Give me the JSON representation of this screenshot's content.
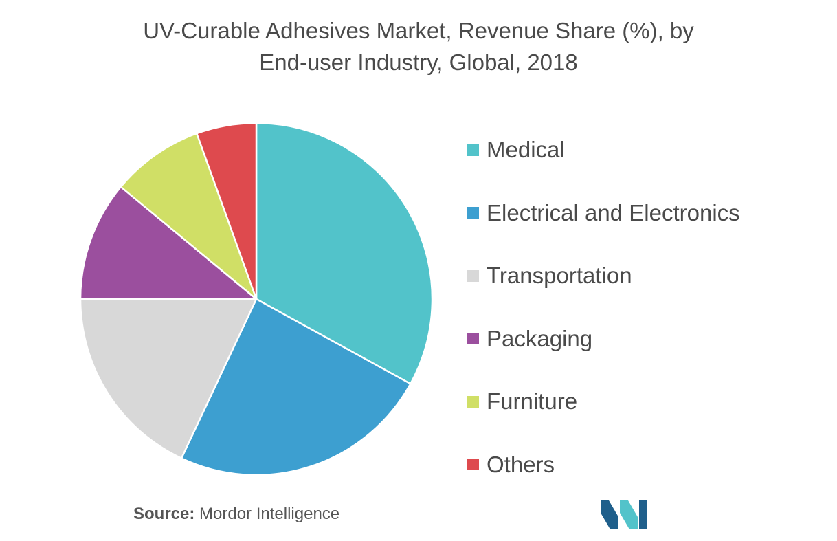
{
  "title_line1": "UV-Curable Adhesives Market, Revenue Share (%), by",
  "title_line2": "End-user Industry, Global, 2018",
  "source_label": "Source:",
  "source_name": "Mordor Intelligence",
  "chart_data": {
    "type": "pie",
    "title": "UV-Curable Adhesives Market, Revenue Share (%), by End-user Industry, Global, 2018",
    "legend_position": "right",
    "slices": [
      {
        "label": "Medical",
        "value": 33,
        "color": "#52c3ca"
      },
      {
        "label": "Electrical and Electronics",
        "value": 24,
        "color": "#3d9fd0"
      },
      {
        "label": "Transportation",
        "value": 18,
        "color": "#d8d8d8"
      },
      {
        "label": "Packaging",
        "value": 11,
        "color": "#9b4f9e"
      },
      {
        "label": "Furniture",
        "value": 8.5,
        "color": "#d0df66"
      },
      {
        "label": "Others",
        "value": 5.5,
        "color": "#de4a4e"
      }
    ]
  },
  "logo_colors": [
    "#1f5f8b",
    "#52c3ca"
  ]
}
